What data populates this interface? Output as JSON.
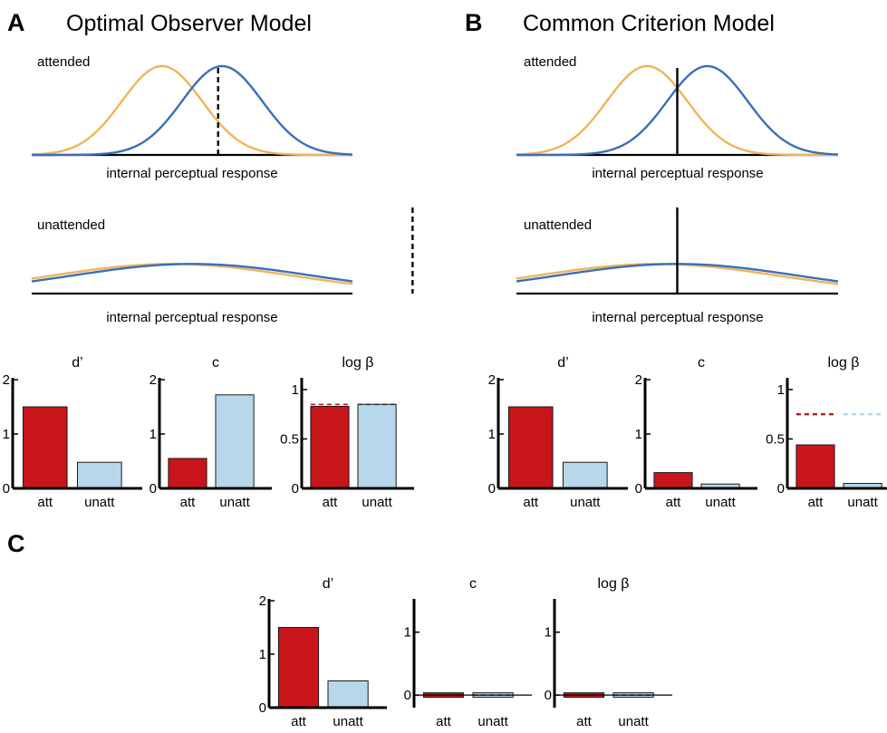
{
  "colors": {
    "attended_curve": "#f0b35a",
    "unattended_curve": "#3a6fb8",
    "att_bar": "#c8151b",
    "unatt_bar": "#b6d8ea",
    "axis": "#000000"
  },
  "panels": [
    {
      "letter": "A",
      "title": "Optimal Observer Model",
      "distributions": [
        {
          "label": "attended",
          "xlabel": "internal perceptual response",
          "noise_mean": -0.75,
          "signal_mean": 0.75,
          "sd": 1.0,
          "criterion": 0.65,
          "criterion_style": "dashed"
        },
        {
          "label": "unattended",
          "xlabel": "internal perceptual response",
          "noise_mean": -0.5,
          "signal_mean": 0.0,
          "sd": 3.0,
          "criterion": 5.5,
          "criterion_style": "dashed"
        }
      ],
      "bar_charts": [
        {
          "title": "d’",
          "categories": [
            "att",
            "unatt"
          ],
          "values": [
            1.5,
            0.48
          ],
          "ylim": [
            0,
            2
          ],
          "yticks": [
            "0",
            "1",
            "2"
          ],
          "ytick_values": [
            0,
            1,
            2
          ]
        },
        {
          "title": "c",
          "categories": [
            "att",
            "unatt"
          ],
          "values": [
            0.55,
            1.72
          ],
          "ylim": [
            0,
            2
          ],
          "yticks": [
            "0",
            "1",
            "2"
          ],
          "ytick_values": [
            0,
            1,
            2
          ]
        },
        {
          "title": "log β",
          "categories": [
            "att",
            "unatt"
          ],
          "values": [
            0.83,
            0.85
          ],
          "reference": [
            0.85,
            0.85
          ],
          "ylim": [
            0,
            1.1
          ],
          "yticks": [
            "0",
            "0.5",
            "1"
          ],
          "ytick_values": [
            0,
            0.5,
            1
          ]
        }
      ]
    },
    {
      "letter": "B",
      "title": "Common Criterion Model",
      "distributions": [
        {
          "label": "attended",
          "xlabel": "internal perceptual response",
          "noise_mean": -0.75,
          "signal_mean": 0.75,
          "sd": 1.0,
          "criterion": 0.0,
          "criterion_style": "solid"
        },
        {
          "label": "unattended",
          "xlabel": "internal perceptual response",
          "noise_mean": -0.5,
          "signal_mean": 0.0,
          "sd": 3.0,
          "criterion": 0.0,
          "criterion_style": "solid"
        }
      ],
      "bar_charts": [
        {
          "title": "d’",
          "categories": [
            "att",
            "unatt"
          ],
          "values": [
            1.5,
            0.48
          ],
          "ylim": [
            0,
            2
          ],
          "yticks": [
            "0",
            "1",
            "2"
          ],
          "ytick_values": [
            0,
            1,
            2
          ]
        },
        {
          "title": "c",
          "categories": [
            "att",
            "unatt"
          ],
          "values": [
            0.29,
            0.08
          ],
          "ylim": [
            0,
            2
          ],
          "yticks": [
            "0",
            "1",
            "2"
          ],
          "ytick_values": [
            0,
            1,
            2
          ]
        },
        {
          "title": "log β",
          "categories": [
            "att",
            "unatt"
          ],
          "values": [
            0.44,
            0.05
          ],
          "reference": [
            0.75,
            0.75
          ],
          "ylim": [
            0,
            1.1
          ],
          "yticks": [
            "0",
            "0.5",
            "1"
          ],
          "ytick_values": [
            0,
            0.5,
            1
          ]
        }
      ]
    },
    {
      "letter": "C",
      "title": "",
      "distributions": [],
      "bar_charts": [
        {
          "title": "d’",
          "categories": [
            "att",
            "unatt"
          ],
          "values": [
            1.5,
            0.5
          ],
          "ylim": [
            0,
            2
          ],
          "yticks": [
            "0",
            "1",
            "2"
          ],
          "ytick_values": [
            0,
            1,
            2
          ]
        },
        {
          "title": "c",
          "categories": [
            "att",
            "unatt"
          ],
          "values": [
            0.0,
            0.0
          ],
          "reference": [
            0.0,
            0.0
          ],
          "ylim": [
            -0.2,
            1.5
          ],
          "yticks": [
            "0",
            "1"
          ],
          "ytick_values": [
            0,
            1
          ]
        },
        {
          "title": "log β",
          "categories": [
            "att",
            "unatt"
          ],
          "values": [
            0.0,
            0.0
          ],
          "reference": [
            0.0,
            0.0
          ],
          "ylim": [
            -0.2,
            1.5
          ],
          "yticks": [
            "0",
            "1"
          ],
          "ytick_values": [
            0,
            1
          ]
        }
      ]
    }
  ]
}
